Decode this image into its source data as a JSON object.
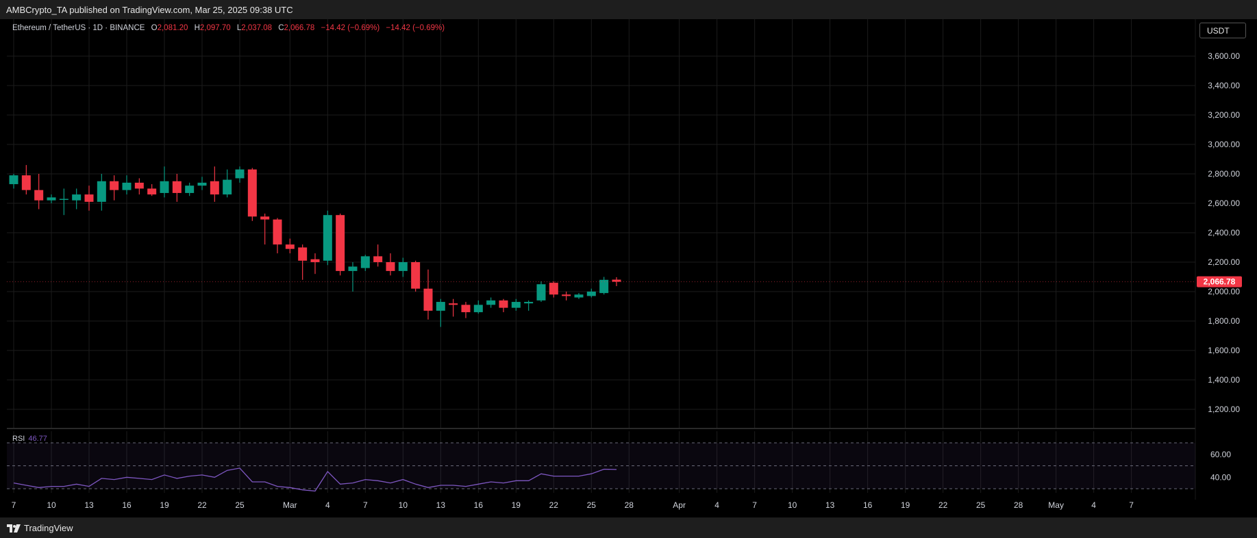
{
  "header": {
    "published": "AMBCrypto_TA published on TradingView.com, Mar 25, 2025 09:38 UTC"
  },
  "legend": {
    "symbol": "Ethereum / TetherUS · 1D · BINANCE",
    "open_label": "O",
    "open": "2,081.20",
    "high_label": "H",
    "high": "2,097.70",
    "low_label": "L",
    "low": "2,037.08",
    "close_label": "C",
    "close": "2,066.78",
    "change1": "−14.42 (−0.69%)",
    "change2": "−14.42 (−0.69%)"
  },
  "currency_button": "USDT",
  "rsi": {
    "label": "RSI",
    "value": "46.77"
  },
  "footer": {
    "brand": "TradingView"
  },
  "colors": {
    "up": "#089981",
    "down": "#f23645",
    "rsi": "#7e57c2",
    "grid": "#1c1c1c"
  },
  "chart_data": {
    "type": "candlestick",
    "price_axis": {
      "ticks": [
        1200,
        1400,
        1600,
        1800,
        2000,
        2200,
        2400,
        2600,
        2800,
        3000,
        3200,
        3400,
        3600
      ],
      "tick_labels": [
        "1,200.00",
        "1,400.00",
        "1,600.00",
        "1,800.00",
        "2,000.00",
        "2,200.00",
        "2,400.00",
        "2,600.00",
        "2,800.00",
        "3,000.00",
        "3,200.00",
        "3,400.00",
        "3,600.00"
      ],
      "last_price": 2066.78,
      "last_price_label": "2,066.78"
    },
    "time_axis": {
      "labels": [
        "7",
        "10",
        "13",
        "16",
        "19",
        "22",
        "25",
        "Mar",
        "4",
        "7",
        "10",
        "13",
        "16",
        "19",
        "22",
        "25",
        "28",
        "Apr",
        "4",
        "7",
        "10",
        "13",
        "16",
        "19",
        "22",
        "25",
        "28",
        "May",
        "4",
        "7"
      ],
      "label_bar_index": [
        0,
        3,
        6,
        9,
        12,
        15,
        18,
        22,
        25,
        28,
        31,
        34,
        37,
        40,
        43,
        46,
        49,
        53,
        56,
        59,
        62,
        65,
        68,
        71,
        74,
        77,
        80,
        83,
        86,
        89
      ]
    },
    "candles": [
      {
        "o": 2730,
        "h": 2800,
        "l": 2700,
        "c": 2790
      },
      {
        "o": 2790,
        "h": 2860,
        "l": 2660,
        "c": 2690
      },
      {
        "o": 2690,
        "h": 2800,
        "l": 2560,
        "c": 2620
      },
      {
        "o": 2620,
        "h": 2660,
        "l": 2600,
        "c": 2640
      },
      {
        "o": 2630,
        "h": 2700,
        "l": 2520,
        "c": 2630
      },
      {
        "o": 2620,
        "h": 2700,
        "l": 2560,
        "c": 2660
      },
      {
        "o": 2660,
        "h": 2720,
        "l": 2550,
        "c": 2610
      },
      {
        "o": 2610,
        "h": 2800,
        "l": 2550,
        "c": 2750
      },
      {
        "o": 2750,
        "h": 2790,
        "l": 2620,
        "c": 2690
      },
      {
        "o": 2690,
        "h": 2790,
        "l": 2660,
        "c": 2740
      },
      {
        "o": 2740,
        "h": 2770,
        "l": 2660,
        "c": 2700
      },
      {
        "o": 2700,
        "h": 2730,
        "l": 2650,
        "c": 2660
      },
      {
        "o": 2670,
        "h": 2850,
        "l": 2640,
        "c": 2750
      },
      {
        "o": 2750,
        "h": 2800,
        "l": 2610,
        "c": 2670
      },
      {
        "o": 2670,
        "h": 2740,
        "l": 2650,
        "c": 2720
      },
      {
        "o": 2720,
        "h": 2780,
        "l": 2690,
        "c": 2740
      },
      {
        "o": 2750,
        "h": 2850,
        "l": 2610,
        "c": 2660
      },
      {
        "o": 2660,
        "h": 2830,
        "l": 2640,
        "c": 2760
      },
      {
        "o": 2770,
        "h": 2850,
        "l": 2740,
        "c": 2830
      },
      {
        "o": 2830,
        "h": 2840,
        "l": 2480,
        "c": 2510
      },
      {
        "o": 2510,
        "h": 2530,
        "l": 2320,
        "c": 2490
      },
      {
        "o": 2490,
        "h": 2500,
        "l": 2260,
        "c": 2320
      },
      {
        "o": 2320,
        "h": 2360,
        "l": 2260,
        "c": 2290
      },
      {
        "o": 2300,
        "h": 2320,
        "l": 2080,
        "c": 2210
      },
      {
        "o": 2220,
        "h": 2260,
        "l": 2120,
        "c": 2200
      },
      {
        "o": 2210,
        "h": 2550,
        "l": 2180,
        "c": 2520
      },
      {
        "o": 2520,
        "h": 2530,
        "l": 2110,
        "c": 2140
      },
      {
        "o": 2140,
        "h": 2200,
        "l": 2000,
        "c": 2170
      },
      {
        "o": 2160,
        "h": 2250,
        "l": 2140,
        "c": 2240
      },
      {
        "o": 2240,
        "h": 2320,
        "l": 2170,
        "c": 2200
      },
      {
        "o": 2200,
        "h": 2260,
        "l": 2110,
        "c": 2140
      },
      {
        "o": 2140,
        "h": 2230,
        "l": 2100,
        "c": 2200
      },
      {
        "o": 2200,
        "h": 2210,
        "l": 2000,
        "c": 2020
      },
      {
        "o": 2020,
        "h": 2150,
        "l": 1810,
        "c": 1870
      },
      {
        "o": 1870,
        "h": 1950,
        "l": 1760,
        "c": 1930
      },
      {
        "o": 1920,
        "h": 1950,
        "l": 1830,
        "c": 1910
      },
      {
        "o": 1910,
        "h": 1930,
        "l": 1820,
        "c": 1860
      },
      {
        "o": 1860,
        "h": 1940,
        "l": 1850,
        "c": 1910
      },
      {
        "o": 1910,
        "h": 1960,
        "l": 1890,
        "c": 1940
      },
      {
        "o": 1940,
        "h": 1950,
        "l": 1860,
        "c": 1890
      },
      {
        "o": 1890,
        "h": 1950,
        "l": 1870,
        "c": 1930
      },
      {
        "o": 1920,
        "h": 1940,
        "l": 1870,
        "c": 1930
      },
      {
        "o": 1940,
        "h": 2070,
        "l": 1930,
        "c": 2050
      },
      {
        "o": 2060,
        "h": 2070,
        "l": 1960,
        "c": 1980
      },
      {
        "o": 1980,
        "h": 2000,
        "l": 1940,
        "c": 1970
      },
      {
        "o": 1960,
        "h": 1990,
        "l": 1950,
        "c": 1980
      },
      {
        "o": 1970,
        "h": 2020,
        "l": 1960,
        "c": 2000
      },
      {
        "o": 1990,
        "h": 2100,
        "l": 1980,
        "c": 2080
      },
      {
        "o": 2081.2,
        "h": 2097.7,
        "l": 2037.08,
        "c": 2066.78
      }
    ],
    "rsi": {
      "levels": [
        30,
        50,
        70
      ],
      "tick_labels": [
        {
          "value": 40,
          "label": "40.00"
        },
        {
          "value": 60,
          "label": "60.00"
        }
      ],
      "values": [
        35,
        33,
        31,
        32,
        32,
        34,
        32,
        39,
        38,
        40,
        39,
        38,
        42,
        39,
        41,
        42,
        40,
        46,
        48,
        36,
        36,
        32,
        31,
        29,
        28,
        45,
        34,
        35,
        38,
        37,
        35,
        38,
        34,
        31,
        33,
        33,
        32,
        34,
        36,
        35,
        37,
        37,
        43,
        41,
        41,
        41,
        43,
        47,
        46.77
      ]
    }
  }
}
